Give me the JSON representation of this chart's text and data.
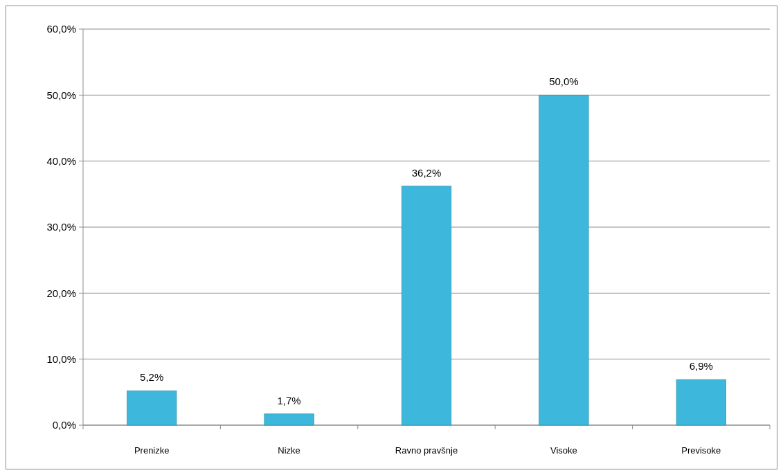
{
  "chart_data": {
    "type": "bar",
    "categories": [
      "Prenizke",
      "Nizke",
      "Ravno pravšnje",
      "Visoke",
      "Previsoke"
    ],
    "values": [
      5.2,
      1.7,
      36.2,
      50.0,
      6.9
    ],
    "value_labels": [
      "5,2%",
      "1,7%",
      "36,2%",
      "50,0%",
      "6,9%"
    ],
    "color": "#3db8dc",
    "ylim": [
      0,
      60
    ],
    "yticks": [
      {
        "value": 0,
        "label": "0,0%"
      },
      {
        "value": 10,
        "label": "10,0%"
      },
      {
        "value": 20,
        "label": "20,0%"
      },
      {
        "value": 30,
        "label": "30,0%"
      },
      {
        "value": 40,
        "label": "40,0%"
      },
      {
        "value": 50,
        "label": "50,0%"
      },
      {
        "value": 60,
        "label": "60,0%"
      }
    ],
    "grid": "y"
  }
}
